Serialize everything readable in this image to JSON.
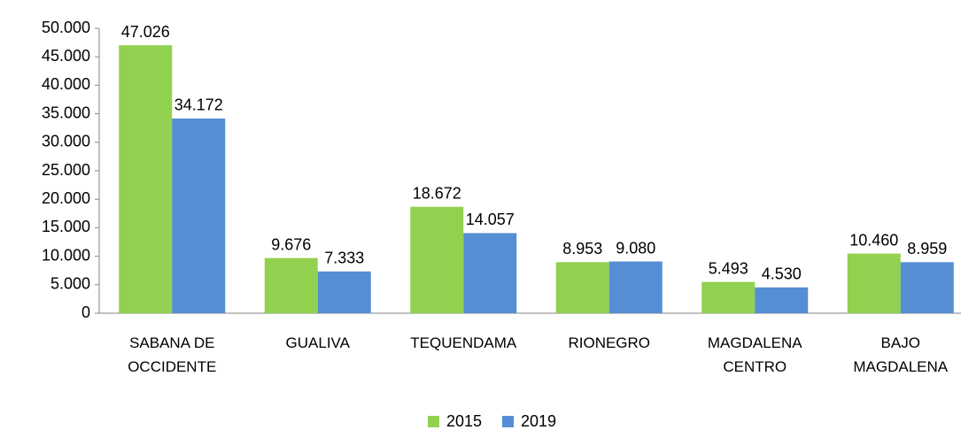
{
  "chart_data": {
    "type": "bar",
    "categories": [
      "SABANA DE OCCIDENTE",
      "GUALIVA",
      "TEQUENDAMA",
      "RIONEGRO",
      "MAGDALENA CENTRO",
      "BAJO MAGDALENA"
    ],
    "series": [
      {
        "name": "2015",
        "color": "#92d050",
        "values": [
          47026,
          9676,
          18672,
          8953,
          5493,
          10460
        ],
        "value_labels": [
          "47.026",
          "9.676",
          "18.672",
          "8.953",
          "5.493",
          "10.460"
        ]
      },
      {
        "name": "2019",
        "color": "#558ed5",
        "values": [
          34172,
          7333,
          14057,
          9080,
          4530,
          8959
        ],
        "value_labels": [
          "34.172",
          "7.333",
          "14.057",
          "9.080",
          "4.530",
          "8.959"
        ]
      }
    ],
    "ylim": [
      0,
      50000
    ],
    "yticks": [
      0,
      {
        "value": 5000,
        "label": "5.000"
      },
      {
        "value": 10000,
        "label": "10.000"
      },
      {
        "value": 15000,
        "label": "15.000"
      },
      {
        "value": 20000,
        "label": "20.000"
      },
      {
        "value": 25000,
        "label": "25.000"
      },
      {
        "value": 30000,
        "label": "30.000"
      },
      {
        "value": 35000,
        "label": "35.000"
      },
      {
        "value": 40000,
        "label": "40.000"
      },
      {
        "value": 45000,
        "label": "45.000"
      },
      {
        "value": 50000,
        "label": "50.000"
      }
    ],
    "legend": "bottom"
  }
}
